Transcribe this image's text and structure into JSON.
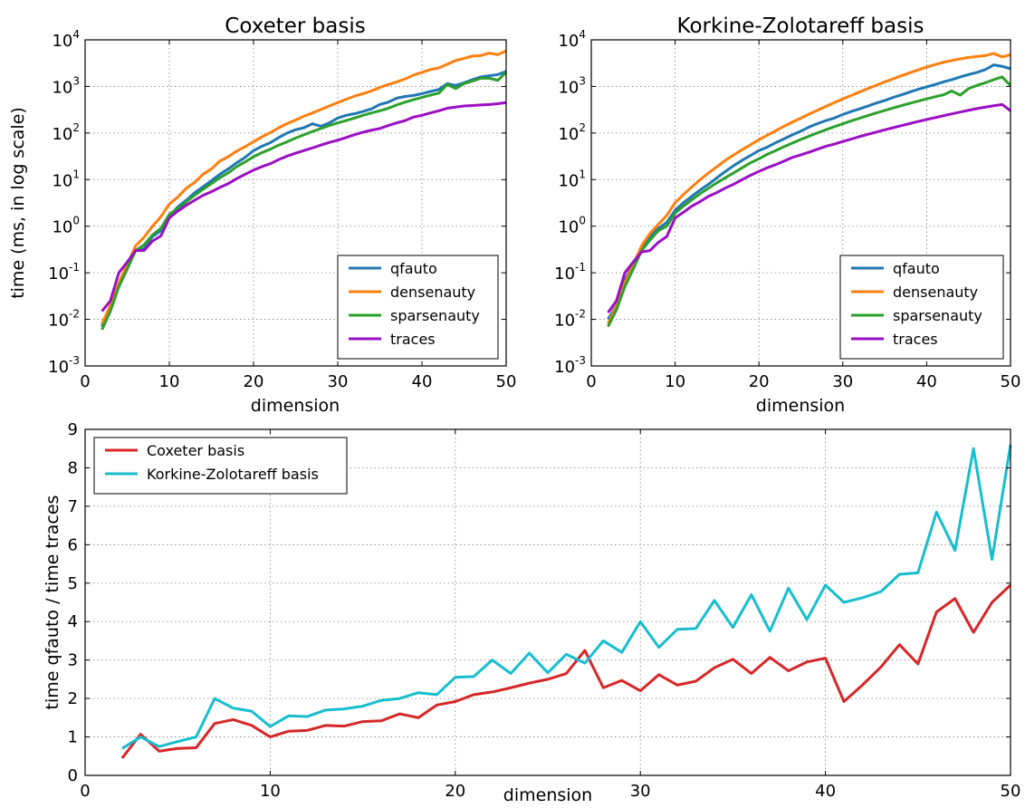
{
  "colors": {
    "qfauto": "#1f77b4",
    "densenauty": "#ff7f0e",
    "sparsenauty": "#2ca02c",
    "traces": "#9b0fc4",
    "coxeter_ratio": "#d62728",
    "kz_ratio": "#17becf",
    "grid": "#7f7f7f"
  },
  "chart_data": [
    {
      "type": "line",
      "title": "Coxeter basis",
      "xlabel": "dimension",
      "ylabel": "time (ms, in log scale)",
      "xlim": [
        0,
        50
      ],
      "ylim": [
        0.001,
        10000
      ],
      "yscale": "log",
      "grid": true,
      "legend_position": "bottom-right",
      "xticks": [
        0,
        10,
        20,
        30,
        40,
        50
      ],
      "yticks": [
        0.001,
        0.01,
        0.1,
        1,
        10,
        100,
        1000,
        10000
      ],
      "ytick_labels": [
        {
          "base": "10",
          "exp": "-3"
        },
        {
          "base": "10",
          "exp": "-2"
        },
        {
          "base": "10",
          "exp": "-1"
        },
        {
          "base": "10",
          "exp": "0"
        },
        {
          "base": "10",
          "exp": "1"
        },
        {
          "base": "10",
          "exp": "2"
        },
        {
          "base": "10",
          "exp": "3"
        },
        {
          "base": "10",
          "exp": "4"
        }
      ],
      "x": [
        2,
        3,
        4,
        5,
        6,
        7,
        8,
        9,
        10,
        11,
        12,
        13,
        14,
        15,
        16,
        17,
        18,
        19,
        20,
        21,
        22,
        23,
        24,
        25,
        26,
        27,
        28,
        29,
        30,
        31,
        32,
        33,
        34,
        35,
        36,
        37,
        38,
        39,
        40,
        41,
        42,
        43,
        44,
        45,
        46,
        47,
        48,
        49,
        50
      ],
      "series": [
        {
          "name": "qfauto",
          "values": [
            0.007,
            0.02,
            0.05,
            0.13,
            0.3,
            0.33,
            0.6,
            0.8,
            1.6,
            2.6,
            3.6,
            5.2,
            7,
            9.5,
            13,
            17,
            23,
            30,
            42,
            52,
            62,
            80,
            100,
            118,
            130,
            158,
            140,
            165,
            210,
            240,
            260,
            290,
            330,
            410,
            460,
            560,
            610,
            640,
            700,
            780,
            860,
            1150,
            1050,
            1200,
            1400,
            1600,
            1700,
            1800,
            2100
          ]
        },
        {
          "name": "densenauty",
          "values": [
            0.008,
            0.02,
            0.06,
            0.15,
            0.38,
            0.58,
            1.0,
            1.6,
            3.0,
            4.2,
            6.5,
            8.7,
            13,
            17,
            25,
            31,
            41,
            51,
            65,
            83,
            102,
            130,
            160,
            190,
            230,
            270,
            320,
            380,
            450,
            530,
            620,
            700,
            800,
            950,
            1100,
            1250,
            1450,
            1750,
            2000,
            2300,
            2500,
            3000,
            3600,
            4000,
            4500,
            4600,
            5200,
            4800,
            5800
          ]
        },
        {
          "name": "sparsenauty",
          "values": [
            0.006,
            0.015,
            0.05,
            0.12,
            0.3,
            0.4,
            0.65,
            0.9,
            1.8,
            2.4,
            3.3,
            4.6,
            6.2,
            8.2,
            11,
            14,
            19,
            24,
            31,
            38,
            45,
            55,
            65,
            78,
            92,
            108,
            125,
            145,
            165,
            185,
            210,
            240,
            270,
            300,
            340,
            400,
            460,
            520,
            580,
            650,
            720,
            1100,
            900,
            1150,
            1300,
            1500,
            1500,
            1350,
            2000
          ]
        },
        {
          "name": "traces",
          "values": [
            0.015,
            0.025,
            0.1,
            0.17,
            0.3,
            0.3,
            0.48,
            0.62,
            1.5,
            2.1,
            2.8,
            3.6,
            4.6,
            5.5,
            6.8,
            8.2,
            10.5,
            13,
            16,
            19,
            22,
            27,
            32,
            37,
            42,
            48,
            55,
            63,
            70,
            80,
            92,
            104,
            115,
            125,
            145,
            165,
            185,
            220,
            240,
            270,
            300,
            340,
            360,
            380,
            390,
            400,
            410,
            425,
            450
          ]
        }
      ]
    },
    {
      "type": "line",
      "title": "Korkine-Zolotareff basis",
      "xlabel": "dimension",
      "ylabel": "",
      "xlim": [
        0,
        50
      ],
      "ylim": [
        0.001,
        10000
      ],
      "yscale": "log",
      "grid": true,
      "legend_position": "bottom-right",
      "xticks": [
        0,
        10,
        20,
        30,
        40,
        50
      ],
      "yticks": [
        0.001,
        0.01,
        0.1,
        1,
        10,
        100,
        1000,
        10000
      ],
      "ytick_labels": [
        {
          "base": "10",
          "exp": "-3"
        },
        {
          "base": "10",
          "exp": "-2"
        },
        {
          "base": "10",
          "exp": "-1"
        },
        {
          "base": "10",
          "exp": "0"
        },
        {
          "base": "10",
          "exp": "1"
        },
        {
          "base": "10",
          "exp": "2"
        },
        {
          "base": "10",
          "exp": "3"
        },
        {
          "base": "10",
          "exp": "4"
        }
      ],
      "x": [
        2,
        3,
        4,
        5,
        6,
        7,
        8,
        9,
        10,
        11,
        12,
        13,
        14,
        15,
        16,
        17,
        18,
        19,
        20,
        21,
        22,
        23,
        24,
        25,
        26,
        27,
        28,
        29,
        30,
        31,
        32,
        33,
        34,
        35,
        36,
        37,
        38,
        39,
        40,
        41,
        42,
        43,
        44,
        45,
        46,
        47,
        48,
        49,
        50
      ],
      "series": [
        {
          "name": "qfauto",
          "values": [
            0.01,
            0.02,
            0.07,
            0.15,
            0.35,
            0.6,
            0.9,
            1.2,
            2.2,
            3.2,
            4.4,
            6,
            8,
            11,
            15,
            20,
            26,
            33,
            42,
            50,
            62,
            75,
            92,
            110,
            135,
            160,
            185,
            210,
            250,
            290,
            330,
            380,
            440,
            500,
            580,
            660,
            760,
            870,
            980,
            1100,
            1250,
            1400,
            1600,
            1800,
            2000,
            2300,
            2900,
            2700,
            2400
          ]
        },
        {
          "name": "densenauty",
          "values": [
            0.008,
            0.02,
            0.06,
            0.15,
            0.38,
            0.7,
            1.1,
            1.7,
            3.2,
            4.8,
            7,
            10,
            14,
            19,
            26,
            34,
            44,
            56,
            72,
            90,
            112,
            140,
            172,
            210,
            256,
            310,
            375,
            450,
            540,
            640,
            760,
            900,
            1060,
            1250,
            1460,
            1700,
            1970,
            2270,
            2600,
            2950,
            3300,
            3600,
            3900,
            4200,
            4400,
            4600,
            5100,
            4300,
            4800
          ]
        },
        {
          "name": "sparsenauty",
          "values": [
            0.007,
            0.016,
            0.05,
            0.12,
            0.3,
            0.5,
            0.8,
            1.0,
            1.9,
            2.7,
            3.7,
            5,
            6.6,
            8.6,
            11,
            14,
            18,
            23,
            28,
            35,
            42,
            51,
            61,
            73,
            86,
            101,
            118,
            137,
            158,
            182,
            208,
            237,
            270,
            306,
            345,
            388,
            435,
            486,
            540,
            600,
            660,
            800,
            650,
            900,
            1050,
            1200,
            1400,
            1600,
            1050
          ]
        },
        {
          "name": "traces",
          "values": [
            0.014,
            0.025,
            0.1,
            0.17,
            0.28,
            0.3,
            0.45,
            0.6,
            1.5,
            2.0,
            2.7,
            3.4,
            4.4,
            5.3,
            6.6,
            8,
            10,
            12.4,
            15,
            18,
            21,
            25,
            30,
            34,
            39,
            45,
            52,
            58,
            66,
            74,
            84,
            94,
            105,
            117,
            130,
            144,
            160,
            177,
            195,
            214,
            235,
            258,
            282,
            308,
            335,
            360,
            385,
            410,
            300
          ]
        }
      ]
    },
    {
      "type": "line",
      "title": "",
      "xlabel": "dimension",
      "ylabel": "time qfauto / time traces",
      "xlim": [
        0,
        50
      ],
      "ylim": [
        0,
        9
      ],
      "yscale": "linear",
      "grid": true,
      "legend_position": "top-left",
      "xticks": [
        0,
        10,
        20,
        30,
        40,
        50
      ],
      "yticks": [
        0,
        1,
        2,
        3,
        4,
        5,
        6,
        7,
        8,
        9
      ],
      "x": [
        2,
        3,
        4,
        5,
        6,
        7,
        8,
        9,
        10,
        11,
        12,
        13,
        14,
        15,
        16,
        17,
        18,
        19,
        20,
        21,
        22,
        23,
        24,
        25,
        26,
        27,
        28,
        29,
        30,
        31,
        32,
        33,
        34,
        35,
        36,
        37,
        38,
        39,
        40,
        41,
        42,
        43,
        44,
        45,
        46,
        47,
        48,
        49,
        50
      ],
      "series": [
        {
          "name": "Coxeter basis",
          "values": [
            0.45,
            1.07,
            0.63,
            0.7,
            0.72,
            1.35,
            1.45,
            1.3,
            1.0,
            1.15,
            1.17,
            1.3,
            1.28,
            1.4,
            1.42,
            1.6,
            1.5,
            1.83,
            1.92,
            2.1,
            2.17,
            2.28,
            2.4,
            2.5,
            2.65,
            3.25,
            2.28,
            2.47,
            2.2,
            2.62,
            2.35,
            2.45,
            2.8,
            3.02,
            2.65,
            3.07,
            2.72,
            2.95,
            3.05,
            1.92,
            2.35,
            2.82,
            3.4,
            2.9,
            4.25,
            4.6,
            3.72,
            4.5,
            4.95
          ]
        },
        {
          "name": "Korkine-Zolotareff basis",
          "values": [
            0.7,
            1.0,
            0.75,
            0.88,
            1.0,
            2.0,
            1.75,
            1.67,
            1.27,
            1.55,
            1.53,
            1.7,
            1.73,
            1.8,
            1.95,
            2.0,
            2.15,
            2.1,
            2.55,
            2.57,
            3.0,
            2.65,
            3.18,
            2.67,
            3.15,
            2.92,
            3.5,
            3.2,
            4.0,
            3.33,
            3.8,
            3.82,
            4.55,
            3.85,
            4.7,
            3.75,
            4.87,
            4.05,
            4.95,
            4.5,
            4.62,
            4.78,
            5.23,
            5.27,
            6.85,
            5.85,
            8.5,
            5.62,
            8.6
          ]
        }
      ]
    }
  ]
}
